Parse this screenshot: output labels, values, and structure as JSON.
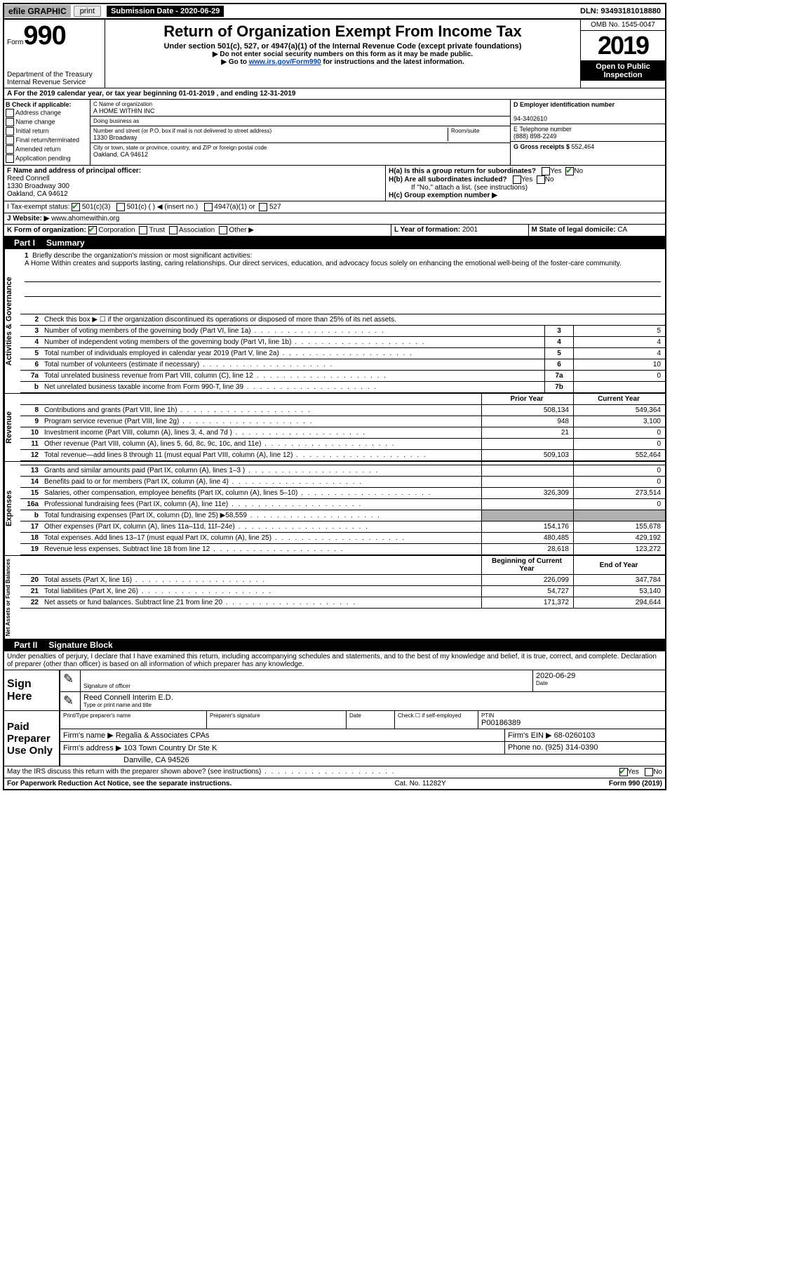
{
  "topbar": {
    "efile": "efile GRAPHIC",
    "print": "print",
    "sub_label": "Submission Date - ",
    "sub_date": "2020-06-29",
    "dln_label": "DLN: ",
    "dln": "93493181018880"
  },
  "header": {
    "form_word": "Form",
    "form_num": "990",
    "dept": "Department of the Treasury\nInternal Revenue Service",
    "title": "Return of Organization Exempt From Income Tax",
    "subtitle": "Under section 501(c), 527, or 4947(a)(1) of the Internal Revenue Code (except private foundations)",
    "line1": "▶ Do not enter social security numbers on this form as it may be made public.",
    "line2_pre": "▶ Go to ",
    "line2_link": "www.irs.gov/Form990",
    "line2_post": " for instructions and the latest information.",
    "omb": "OMB No. 1545-0047",
    "year": "2019",
    "open": "Open to Public Inspection"
  },
  "section_a": {
    "text": "A For the 2019 calendar year, or tax year beginning 01-01-2019    , and ending 12-31-2019"
  },
  "col_b": {
    "label": "B Check if applicable:",
    "opts": [
      "Address change",
      "Name change",
      "Initial return",
      "Final return/terminated",
      "Amended return",
      "Application pending"
    ]
  },
  "col_c": {
    "name_label": "C Name of organization",
    "name": "A HOME WITHIN INC",
    "dba_label": "Doing business as",
    "dba": "",
    "street_label": "Number and street (or P.O. box if mail is not delivered to street address)",
    "room_label": "Room/suite",
    "street": "1330 Broadway",
    "city_label": "City or town, state or province, country, and ZIP or foreign postal code",
    "city": "Oakland, CA  94612"
  },
  "col_d": {
    "ein_label": "D Employer identification number",
    "ein": "94-3402610",
    "phone_label": "E Telephone number",
    "phone": "(888) 898-2249",
    "gross_label": "G Gross receipts $ ",
    "gross": "552,464"
  },
  "officer": {
    "label": "F  Name and address of principal officer:",
    "name": "Reed Connell",
    "addr1": "1330 Broadway 300",
    "addr2": "Oakland, CA  94612"
  },
  "h": {
    "a_label": "H(a)  Is this a group return for subordinates?",
    "b_label": "H(b)  Are all subordinates included?",
    "b_note": "If \"No,\" attach a list. (see instructions)",
    "c_label": "H(c)  Group exemption number ▶",
    "yes": "Yes",
    "no": "No"
  },
  "tax_status": {
    "label": "I   Tax-exempt status:",
    "o1": "501(c)(3)",
    "o2": "501(c) (  ) ◀ (insert no.)",
    "o3": "4947(a)(1) or",
    "o4": "527"
  },
  "website": {
    "label": "J   Website: ▶ ",
    "value": "www.ahomewithin.org"
  },
  "k": {
    "label": "K Form of organization:",
    "o1": "Corporation",
    "o2": "Trust",
    "o3": "Association",
    "o4": "Other ▶"
  },
  "l": {
    "label": "L Year of formation: ",
    "value": "2001"
  },
  "m": {
    "label": "M State of legal domicile: ",
    "value": "CA"
  },
  "part1": {
    "label": "Part I",
    "title": "Summary"
  },
  "mission": {
    "num": "1",
    "label": "Briefly describe the organization's mission or most significant activities:",
    "text": "A Home Within creates and supports lasting, caring relationships. Our direct services, education, and advocacy focus solely on enhancing the emotional well-being of the foster-care community."
  },
  "side_labels": {
    "gov": "Activities & Governance",
    "rev": "Revenue",
    "exp": "Expenses",
    "net": "Net Assets or Fund Balances"
  },
  "gov_lines": [
    {
      "n": "2",
      "t": "Check this box ▶ ☐  if the organization discontinued its operations or disposed of more than 25% of its net assets.",
      "box": "",
      "v": ""
    },
    {
      "n": "3",
      "t": "Number of voting members of the governing body (Part VI, line 1a)",
      "box": "3",
      "v": "5"
    },
    {
      "n": "4",
      "t": "Number of independent voting members of the governing body (Part VI, line 1b)",
      "box": "4",
      "v": "4"
    },
    {
      "n": "5",
      "t": "Total number of individuals employed in calendar year 2019 (Part V, line 2a)",
      "box": "5",
      "v": "4"
    },
    {
      "n": "6",
      "t": "Total number of volunteers (estimate if necessary)",
      "box": "6",
      "v": "10"
    },
    {
      "n": "7a",
      "t": "Total unrelated business revenue from Part VIII, column (C), line 12",
      "box": "7a",
      "v": "0"
    },
    {
      "n": "b",
      "t": "Net unrelated business taxable income from Form 990-T, line 39",
      "box": "7b",
      "v": ""
    }
  ],
  "col_headers": {
    "prior": "Prior Year",
    "current": "Current Year"
  },
  "rev_lines": [
    {
      "n": "8",
      "t": "Contributions and grants (Part VIII, line 1h)",
      "p": "508,134",
      "c": "549,364"
    },
    {
      "n": "9",
      "t": "Program service revenue (Part VIII, line 2g)",
      "p": "948",
      "c": "3,100"
    },
    {
      "n": "10",
      "t": "Investment income (Part VIII, column (A), lines 3, 4, and 7d )",
      "p": "21",
      "c": "0"
    },
    {
      "n": "11",
      "t": "Other revenue (Part VIII, column (A), lines 5, 6d, 8c, 9c, 10c, and 11e)",
      "p": "",
      "c": "0"
    },
    {
      "n": "12",
      "t": "Total revenue—add lines 8 through 11 (must equal Part VIII, column (A), line 12)",
      "p": "509,103",
      "c": "552,464"
    }
  ],
  "exp_lines": [
    {
      "n": "13",
      "t": "Grants and similar amounts paid (Part IX, column (A), lines 1–3 )",
      "p": "",
      "c": "0"
    },
    {
      "n": "14",
      "t": "Benefits paid to or for members (Part IX, column (A), line 4)",
      "p": "",
      "c": "0"
    },
    {
      "n": "15",
      "t": "Salaries, other compensation, employee benefits (Part IX, column (A), lines 5–10)",
      "p": "326,309",
      "c": "273,514"
    },
    {
      "n": "16a",
      "t": "Professional fundraising fees (Part IX, column (A), line 11e)",
      "p": "",
      "c": "0"
    },
    {
      "n": "b",
      "t": "Total fundraising expenses (Part IX, column (D), line 25) ▶58,559",
      "p": "SHADE",
      "c": "SHADE"
    },
    {
      "n": "17",
      "t": "Other expenses (Part IX, column (A), lines 11a–11d, 11f–24e)",
      "p": "154,176",
      "c": "155,678"
    },
    {
      "n": "18",
      "t": "Total expenses. Add lines 13–17 (must equal Part IX, column (A), line 25)",
      "p": "480,485",
      "c": "429,192"
    },
    {
      "n": "19",
      "t": "Revenue less expenses. Subtract line 18 from line 12",
      "p": "28,618",
      "c": "123,272"
    }
  ],
  "net_headers": {
    "begin": "Beginning of Current Year",
    "end": "End of Year"
  },
  "net_lines": [
    {
      "n": "20",
      "t": "Total assets (Part X, line 16)",
      "p": "226,099",
      "c": "347,784"
    },
    {
      "n": "21",
      "t": "Total liabilities (Part X, line 26)",
      "p": "54,727",
      "c": "53,140"
    },
    {
      "n": "22",
      "t": "Net assets or fund balances. Subtract line 21 from line 20",
      "p": "171,372",
      "c": "294,644"
    }
  ],
  "part2": {
    "label": "Part II",
    "title": "Signature Block",
    "declaration": "Under penalties of perjury, I declare that I have examined this return, including accompanying schedules and statements, and to the best of my knowledge and belief, it is true, correct, and complete. Declaration of preparer (other than officer) is based on all information of which preparer has any knowledge."
  },
  "sign": {
    "side": "Sign Here",
    "sig_label": "Signature of officer",
    "date_label": "Date",
    "date": "2020-06-29",
    "name": "Reed Connell  Interim E.D.",
    "name_label": "Type or print name and title"
  },
  "preparer": {
    "side": "Paid Preparer Use Only",
    "h1": "Print/Type preparer's name",
    "h2": "Preparer's signature",
    "h3": "Date",
    "h4_pre": "Check ☐ if self-employed",
    "h5_label": "PTIN",
    "h5": "P00186389",
    "firm_label": "Firm's name     ▶ ",
    "firm": "Regalia & Associates CPAs",
    "ein_label": "Firm's EIN ▶ ",
    "ein": "68-0260103",
    "addr_label": "Firm's address ▶ ",
    "addr1": "103 Town Country Dr Ste K",
    "addr2": "Danville, CA  94526",
    "phone_label": "Phone no. ",
    "phone": "(925) 314-0390"
  },
  "discuss": {
    "text": "May the IRS discuss this return with the preparer shown above? (see instructions)",
    "yes": "Yes",
    "no": "No"
  },
  "footer": {
    "left": "For Paperwork Reduction Act Notice, see the separate instructions.",
    "mid": "Cat. No. 11282Y",
    "right": "Form 990 (2019)"
  }
}
